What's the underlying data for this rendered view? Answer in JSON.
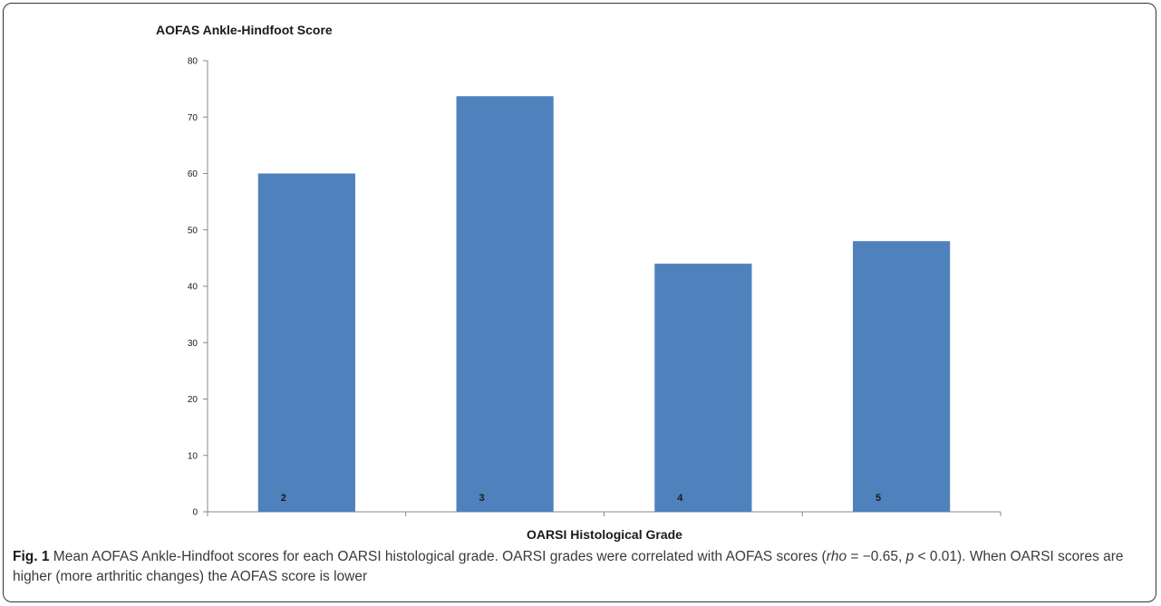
{
  "chart_data": {
    "type": "bar",
    "title": "AOFAS Ankle-Hindfoot Score",
    "xlabel": "OARSI Histological Grade",
    "ylabel": "",
    "categories": [
      "2",
      "3",
      "4",
      "5"
    ],
    "values": [
      60,
      73.7,
      44,
      48
    ],
    "ylim": [
      0,
      80
    ],
    "yticks": [
      "0",
      "10",
      "20",
      "30",
      "40",
      "50",
      "60",
      "70",
      "80"
    ],
    "bar_color": "#4F81BD",
    "grid": false,
    "legend": "none"
  },
  "caption": {
    "fig_label": "Fig. 1",
    "text_1": " Mean AOFAS Ankle-Hindfoot scores for each OARSI histological grade. OARSI grades were correlated with AOFAS scores (",
    "rho": "rho",
    "text_2": " = −0.65, ",
    "p": "p",
    "text_3": " < 0.01). When OARSI scores are higher (more arthritic changes) the AOFAS score is lower"
  }
}
